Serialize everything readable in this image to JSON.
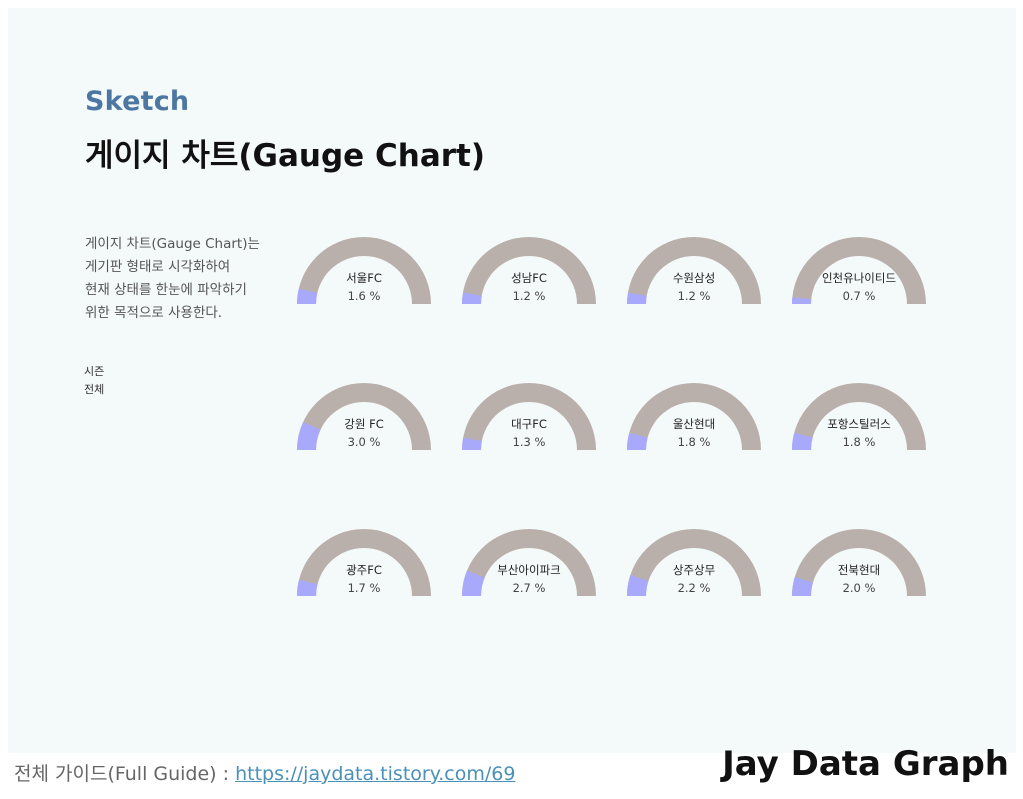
{
  "header": {
    "kicker": "Sketch",
    "title": "게이지 차트(Gauge Chart)"
  },
  "description": "게이지 차트(Gauge Chart)는\n게기판 형태로 시각화하여\n현재 상태를 한눈에 파악하기\n위한 목적으로 사용한다.",
  "filter": {
    "label": "시즌\n전체"
  },
  "colors": {
    "track": "#b9b0ab",
    "value": "#a9a9fb",
    "label": "#222222",
    "value_text": "#444444"
  },
  "chart_data": {
    "type": "gauge",
    "range": [
      0,
      100
    ],
    "unit": "%",
    "gauges": [
      {
        "name": "서울FC",
        "value": 1.6,
        "label": "1.6 %"
      },
      {
        "name": "성남FC",
        "value": 1.2,
        "label": "1.2 %"
      },
      {
        "name": "수원삼성",
        "value": 1.2,
        "label": "1.2 %"
      },
      {
        "name": "인천유나이티드",
        "value": 0.7,
        "label": "0.7 %"
      },
      {
        "name": "강원 FC",
        "value": 3.0,
        "label": "3.0 %"
      },
      {
        "name": "대구FC",
        "value": 1.3,
        "label": "1.3 %"
      },
      {
        "name": "울산현대",
        "value": 1.8,
        "label": "1.8 %"
      },
      {
        "name": "포항스틸러스",
        "value": 1.8,
        "label": "1.8 %"
      },
      {
        "name": "광주FC",
        "value": 1.7,
        "label": "1.7 %"
      },
      {
        "name": "부산아이파크",
        "value": 2.7,
        "label": "2.7 %"
      },
      {
        "name": "상주상무",
        "value": 2.2,
        "label": "2.2 %"
      },
      {
        "name": "전북현대",
        "value": 2.0,
        "label": "2.0 %"
      }
    ]
  },
  "footer": {
    "guide_label": "전체 가이드(Full Guide) : ",
    "guide_link": "https://jaydata.tistory.com/69",
    "brand": "Jay Data Graph"
  }
}
